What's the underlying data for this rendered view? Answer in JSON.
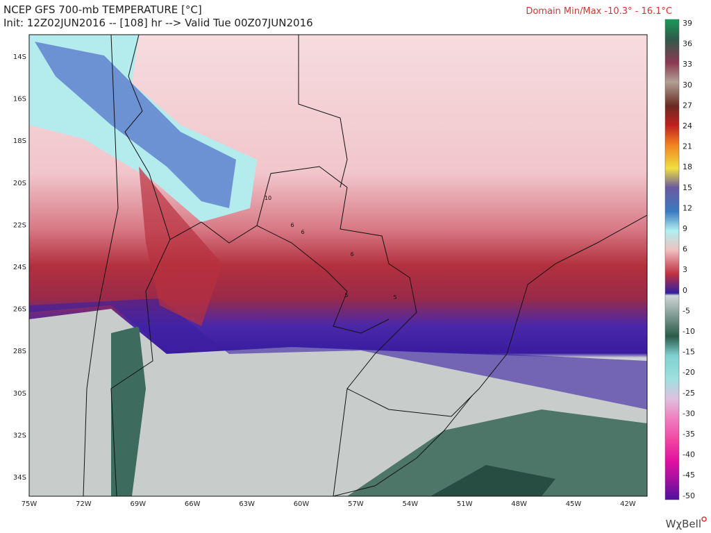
{
  "header": {
    "title": "NCEP GFS 700-mb TEMPERATURE [°C]",
    "init": "Init: 12Z02JUN2016 -- [108] hr --> Valid Tue 00Z07JUN2016",
    "domain": "Domain Min/Max -10.3° - 16.1°C"
  },
  "map": {
    "lat_labels": [
      "14S",
      "16S",
      "18S",
      "20S",
      "22S",
      "24S",
      "26S",
      "28S",
      "30S",
      "32S",
      "34S"
    ],
    "lon_labels": [
      "75W",
      "72W",
      "69W",
      "66W",
      "63W",
      "60W",
      "57W",
      "54W",
      "51W",
      "48W",
      "45W",
      "42W"
    ],
    "contour_labels": [
      "10",
      "6",
      "6",
      "6",
      "5",
      "5"
    ]
  },
  "colorbar": {
    "labels": [
      39,
      36,
      33,
      30,
      27,
      24,
      21,
      18,
      15,
      12,
      9,
      6,
      3,
      0,
      -5,
      -10,
      -15,
      -20,
      -25,
      -30,
      -35,
      -40,
      -45,
      -50
    ]
  },
  "logo": "WχBell"
}
